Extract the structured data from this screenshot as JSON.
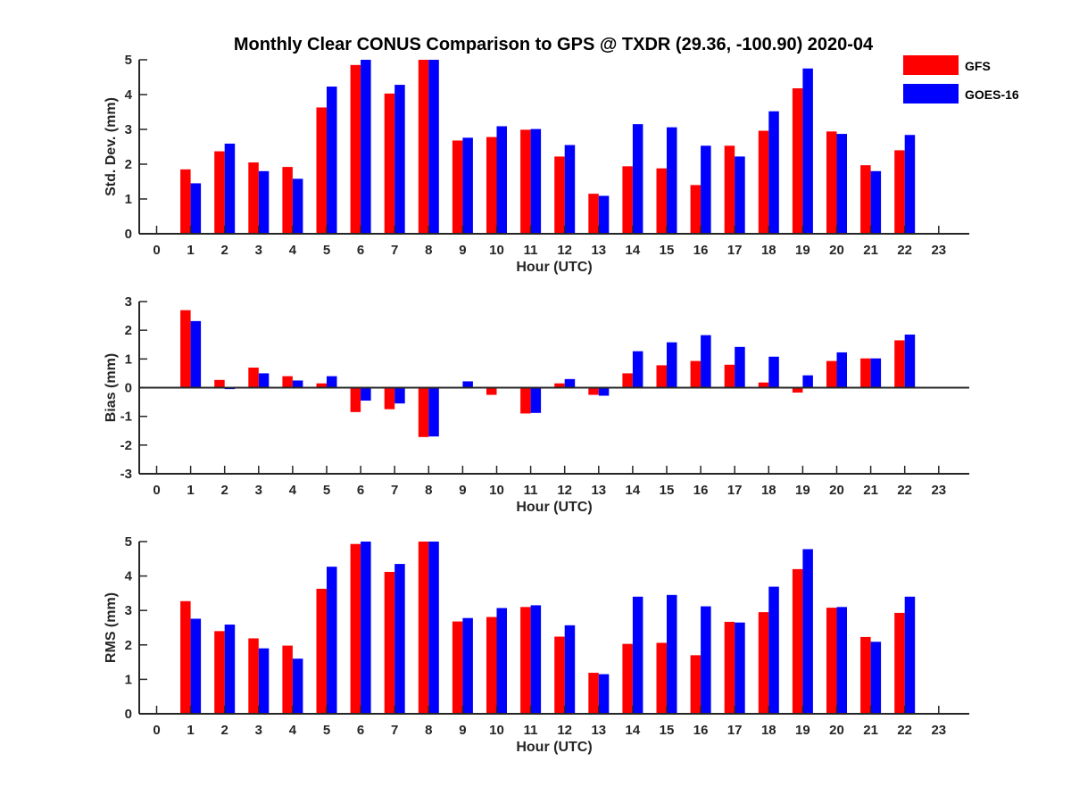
{
  "chart_data": {
    "type": "bar",
    "title": "Monthly Clear CONUS Comparison to GPS @ TXDR (29.36, -100.90) 2020-04",
    "legend": [
      "GFS",
      "GOES-16"
    ],
    "legend_position": "top-right",
    "colors": {
      "GFS": "#ff0000",
      "GOES-16": "#0000ff",
      "axis": "#262626"
    },
    "categories": [
      "0",
      "1",
      "2",
      "3",
      "4",
      "5",
      "6",
      "7",
      "8",
      "9",
      "10",
      "11",
      "12",
      "13",
      "14",
      "15",
      "16",
      "17",
      "18",
      "19",
      "20",
      "21",
      "22",
      "23"
    ],
    "panels": [
      {
        "id": "stddev",
        "ylabel": "Std. Dev. (mm)",
        "xlabel": "Hour (UTC)",
        "ylim": [
          0,
          5
        ],
        "yticks": [
          "0",
          "1",
          "2",
          "3",
          "4",
          "5"
        ],
        "series": [
          {
            "name": "GFS",
            "values": [
              null,
              1.85,
              2.37,
              2.05,
              1.92,
              3.63,
              4.85,
              4.03,
              5.0,
              2.68,
              2.78,
              2.99,
              2.22,
              1.15,
              1.94,
              1.88,
              1.4,
              2.53,
              2.96,
              4.18,
              2.94,
              1.97,
              2.4,
              null
            ]
          },
          {
            "name": "GOES-16",
            "values": [
              null,
              1.45,
              2.59,
              1.8,
              1.58,
              4.23,
              5.0,
              4.28,
              5.0,
              2.76,
              3.09,
              3.01,
              2.55,
              1.09,
              3.15,
              3.06,
              2.53,
              2.22,
              3.52,
              4.75,
              2.87,
              1.8,
              2.84,
              null
            ]
          }
        ]
      },
      {
        "id": "bias",
        "ylabel": "Bias (mm)",
        "xlabel": "Hour (UTC)",
        "ylim": [
          -3,
          3
        ],
        "yticks": [
          "-3",
          "-2",
          "-1",
          "0",
          "1",
          "2",
          "3"
        ],
        "series": [
          {
            "name": "GFS",
            "values": [
              null,
              2.7,
              0.27,
              0.7,
              0.4,
              0.15,
              -0.85,
              -0.75,
              -1.72,
              0.0,
              -0.25,
              -0.9,
              0.15,
              -0.25,
              0.5,
              0.78,
              0.93,
              0.8,
              0.18,
              -0.17,
              0.93,
              1.02,
              1.65,
              null
            ]
          },
          {
            "name": "GOES-16",
            "values": [
              null,
              2.32,
              -0.05,
              0.5,
              0.25,
              0.4,
              -0.45,
              -0.55,
              -1.7,
              0.22,
              -0.02,
              -0.88,
              0.3,
              -0.28,
              1.27,
              1.58,
              1.83,
              1.42,
              1.08,
              0.43,
              1.23,
              1.02,
              1.85,
              null
            ]
          }
        ]
      },
      {
        "id": "rms",
        "ylabel": "RMS (mm)",
        "xlabel": "Hour (UTC)",
        "ylim": [
          0,
          5
        ],
        "yticks": [
          "0",
          "1",
          "2",
          "3",
          "4",
          "5"
        ],
        "series": [
          {
            "name": "GFS",
            "values": [
              null,
              3.27,
              2.4,
              2.19,
              1.98,
              3.63,
              4.93,
              4.12,
              5.0,
              2.68,
              2.81,
              3.1,
              2.24,
              1.19,
              2.03,
              2.06,
              1.7,
              2.67,
              2.95,
              4.2,
              3.08,
              2.23,
              2.93,
              null
            ]
          },
          {
            "name": "GOES-16",
            "values": [
              null,
              2.76,
              2.59,
              1.9,
              1.6,
              4.27,
              5.0,
              4.35,
              5.0,
              2.78,
              3.07,
              3.15,
              2.57,
              1.15,
              3.4,
              3.45,
              3.12,
              2.65,
              3.69,
              4.78,
              3.1,
              2.09,
              3.4,
              null
            ]
          }
        ]
      }
    ]
  }
}
